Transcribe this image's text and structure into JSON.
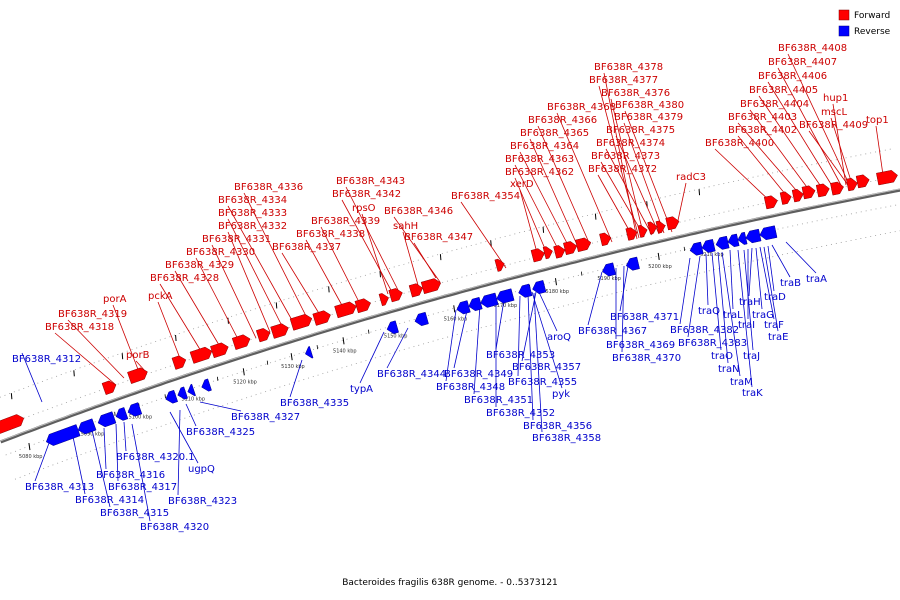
{
  "caption": "Bacteroides fragilis 638R genome. - 0..5373121",
  "legend": [
    {
      "label": "Forward",
      "color": "#ff0000"
    },
    {
      "label": "Reverse",
      "color": "#0000ff"
    }
  ],
  "colors": {
    "forward": "#ff0000",
    "reverse": "#0000ff",
    "forward_label": "#cc0000",
    "reverse_label": "#0000cc",
    "backbone": "#7a7a7a"
  },
  "ticks": [
    "5080 kbp",
    "5090 kbp",
    "5100 kbp",
    "5110 kbp",
    "5120 kbp",
    "5130 kbp",
    "5140 kbp",
    "5150 kbp",
    "5160 kbp",
    "5170 kbp",
    "5180 kbp",
    "5190 kbp",
    "5200 kbp",
    "5210 kbp"
  ],
  "forward_labels": [
    "porA",
    "BF638R_4319",
    "BF638R_4318",
    "porB",
    "pckA",
    "BF638R_4328",
    "BF638R_4329",
    "BF638R_4330",
    "BF638R_4331",
    "BF638R_4332",
    "BF638R_4333",
    "BF638R_4334",
    "BF638R_4336",
    "BF638R_4337",
    "BF638R_4338",
    "BF638R_4339",
    "rpsO",
    "BF638R_4342",
    "BF638R_4343",
    "sahH",
    "BF638R_4346",
    "BF638R_4347",
    "BF638R_4354",
    "xerD",
    "BF638R_4362",
    "BF638R_4363",
    "BF638R_4364",
    "BF638R_4365",
    "BF638R_4366",
    "BF638R_4368",
    "BF638R_4372",
    "BF638R_4373",
    "BF638R_4374",
    "BF638R_4375",
    "BF638R_4379",
    "BF638R_4380",
    "BF638R_4376",
    "BF638R_4377",
    "BF638R_4378",
    "radC3",
    "BF638R_4400",
    "BF638R_4402",
    "BF638R_4403",
    "BF638R_4404",
    "BF638R_4405",
    "BF638R_4406",
    "BF638R_4407",
    "BF638R_4408",
    "hup1",
    "mscL",
    "BF638R_4409",
    "top1"
  ],
  "reverse_labels": [
    "BF638R_4312",
    "BF638R_4313",
    "BF638R_4314",
    "BF638R_4315",
    "BF638R_4316",
    "BF638R_4317",
    "BF638R_4320.1",
    "BF638R_4320",
    "ugpQ",
    "BF638R_4323",
    "BF638R_4325",
    "BF638R_4327",
    "BF638R_4335",
    "typA",
    "BF638R_4344",
    "BF638R_4348",
    "BF638R_4349",
    "BF638R_4351",
    "BF638R_4352",
    "BF638R_4353",
    "BF638R_4355",
    "BF638R_4356",
    "BF638R_4357",
    "BF638R_4358",
    "aroQ",
    "pyk",
    "BF638R_4367",
    "BF638R_4369",
    "BF638R_4370",
    "BF638R_4371",
    "BF638R_4382",
    "BF638R_4383",
    "traQ",
    "traO",
    "traN",
    "traM",
    "traL",
    "traK",
    "traJ",
    "traI",
    "traH",
    "traG",
    "traF",
    "traE",
    "traD",
    "traB",
    "traA"
  ]
}
